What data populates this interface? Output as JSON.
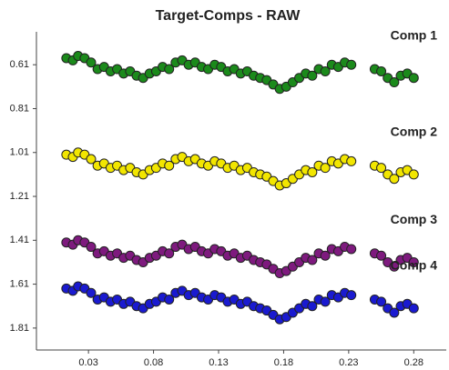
{
  "chart_data": {
    "type": "scatter",
    "title": "Target-Comps - RAW",
    "x": [
      0.013,
      0.018,
      0.022,
      0.027,
      0.032,
      0.037,
      0.042,
      0.047,
      0.052,
      0.057,
      0.062,
      0.067,
      0.072,
      0.077,
      0.082,
      0.087,
      0.092,
      0.097,
      0.102,
      0.107,
      0.112,
      0.117,
      0.122,
      0.127,
      0.132,
      0.137,
      0.142,
      0.147,
      0.152,
      0.157,
      0.162,
      0.167,
      0.172,
      0.177,
      0.182,
      0.187,
      0.192,
      0.197,
      0.202,
      0.207,
      0.212,
      0.217,
      0.222,
      0.227,
      0.232,
      0.25,
      0.255,
      0.26,
      0.265,
      0.27,
      0.275,
      0.28
    ],
    "series": [
      {
        "name": "Comp 1",
        "color": "#1b8a1b",
        "values": [
          0.58,
          0.59,
          0.57,
          0.58,
          0.6,
          0.63,
          0.62,
          0.64,
          0.63,
          0.65,
          0.64,
          0.66,
          0.67,
          0.65,
          0.64,
          0.62,
          0.63,
          0.6,
          0.59,
          0.61,
          0.6,
          0.62,
          0.63,
          0.61,
          0.62,
          0.64,
          0.63,
          0.65,
          0.64,
          0.66,
          0.67,
          0.68,
          0.7,
          0.72,
          0.71,
          0.69,
          0.67,
          0.65,
          0.66,
          0.63,
          0.64,
          0.61,
          0.62,
          0.6,
          0.61,
          0.63,
          0.64,
          0.67,
          0.69,
          0.66,
          0.65,
          0.67
        ]
      },
      {
        "name": "Comp 2",
        "color": "#f2e600",
        "values": [
          1.02,
          1.03,
          1.01,
          1.02,
          1.04,
          1.07,
          1.06,
          1.08,
          1.07,
          1.09,
          1.08,
          1.1,
          1.11,
          1.09,
          1.08,
          1.06,
          1.07,
          1.04,
          1.03,
          1.05,
          1.04,
          1.06,
          1.07,
          1.05,
          1.06,
          1.08,
          1.07,
          1.09,
          1.08,
          1.1,
          1.11,
          1.12,
          1.14,
          1.16,
          1.15,
          1.13,
          1.11,
          1.09,
          1.1,
          1.07,
          1.08,
          1.05,
          1.06,
          1.04,
          1.05,
          1.07,
          1.08,
          1.11,
          1.13,
          1.1,
          1.09,
          1.11
        ]
      },
      {
        "name": "Comp 3",
        "color": "#7e1a7e",
        "values": [
          1.42,
          1.43,
          1.41,
          1.42,
          1.44,
          1.47,
          1.46,
          1.48,
          1.47,
          1.49,
          1.48,
          1.5,
          1.51,
          1.49,
          1.48,
          1.46,
          1.47,
          1.44,
          1.43,
          1.45,
          1.44,
          1.46,
          1.47,
          1.45,
          1.46,
          1.48,
          1.47,
          1.49,
          1.48,
          1.5,
          1.51,
          1.52,
          1.54,
          1.56,
          1.55,
          1.53,
          1.51,
          1.49,
          1.5,
          1.47,
          1.48,
          1.45,
          1.46,
          1.44,
          1.45,
          1.47,
          1.48,
          1.51,
          1.53,
          1.5,
          1.49,
          1.51
        ]
      },
      {
        "name": "Comp 4",
        "color": "#1a1ad0",
        "values": [
          1.63,
          1.64,
          1.62,
          1.63,
          1.65,
          1.68,
          1.67,
          1.69,
          1.68,
          1.7,
          1.69,
          1.71,
          1.72,
          1.7,
          1.69,
          1.67,
          1.68,
          1.65,
          1.64,
          1.66,
          1.65,
          1.67,
          1.68,
          1.66,
          1.67,
          1.69,
          1.68,
          1.7,
          1.69,
          1.71,
          1.72,
          1.73,
          1.75,
          1.77,
          1.76,
          1.74,
          1.72,
          1.7,
          1.71,
          1.68,
          1.69,
          1.66,
          1.67,
          1.65,
          1.66,
          1.68,
          1.69,
          1.72,
          1.74,
          1.71,
          1.7,
          1.72
        ]
      }
    ],
    "xlim": [
      -0.01,
      0.305
    ],
    "xticks": [
      0.03,
      0.08,
      0.13,
      0.18,
      0.23,
      0.28
    ],
    "ylim": [
      0.46,
      1.91
    ],
    "yticks": [
      0.61,
      0.81,
      1.01,
      1.21,
      1.41,
      1.61,
      1.81
    ],
    "y_inverted": true
  }
}
